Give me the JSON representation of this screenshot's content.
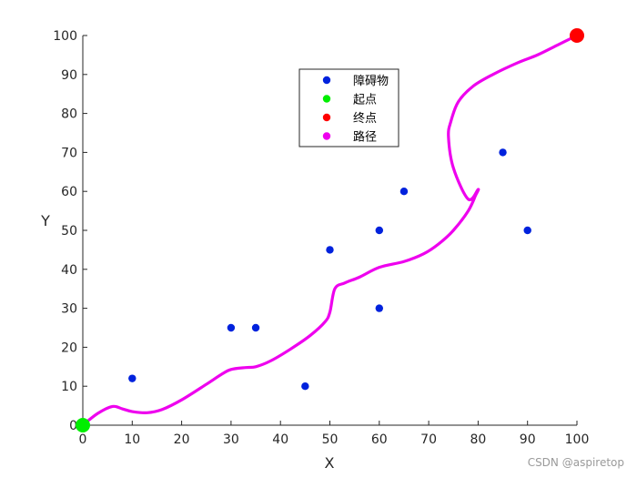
{
  "chart_data": {
    "type": "scatter",
    "xlabel": "X",
    "ylabel": "Y",
    "xlim": [
      0,
      100
    ],
    "ylim": [
      0,
      100
    ],
    "xticks": [
      0,
      10,
      20,
      30,
      40,
      50,
      60,
      70,
      80,
      90,
      100
    ],
    "yticks": [
      0,
      10,
      20,
      30,
      40,
      50,
      60,
      70,
      80,
      90,
      100
    ],
    "grid": false,
    "legend_position": "top-center",
    "series": [
      {
        "name": "障碍物",
        "kind": "points",
        "color": "#0022dd",
        "x": [
          10,
          30,
          35,
          45,
          50,
          60,
          60,
          65,
          85,
          90
        ],
        "y": [
          12,
          25,
          25,
          10,
          45,
          50,
          30,
          60,
          70,
          50
        ]
      },
      {
        "name": "起点",
        "kind": "points",
        "color": "#00ee00",
        "x": [
          0
        ],
        "y": [
          0
        ]
      },
      {
        "name": "终点",
        "kind": "points",
        "color": "#ff0000",
        "x": [
          100
        ],
        "y": [
          100
        ]
      },
      {
        "name": "路径",
        "kind": "line",
        "color": "#ee00ee",
        "x": [
          0,
          3,
          6,
          8,
          10,
          13,
          16,
          20,
          25,
          28,
          30,
          33,
          35,
          38,
          42,
          46,
          49,
          50,
          51,
          53,
          56,
          60,
          65,
          69,
          72,
          75,
          78,
          79.5,
          80,
          78,
          75,
          74,
          74.5,
          76,
          79,
          83,
          88,
          92,
          96,
          100
        ],
        "y": [
          0,
          3,
          4.8,
          4.2,
          3.5,
          3.2,
          4,
          6.5,
          10.5,
          13,
          14.3,
          14.8,
          15,
          16.5,
          19.5,
          23,
          26.5,
          29,
          35,
          36.5,
          38,
          40.5,
          42,
          44,
          46.5,
          50,
          55,
          59,
          60.5,
          58,
          66,
          74,
          78,
          83,
          87,
          90,
          93,
          95,
          97.5,
          100
        ]
      }
    ]
  },
  "watermark": "CSDN @aspiretop"
}
